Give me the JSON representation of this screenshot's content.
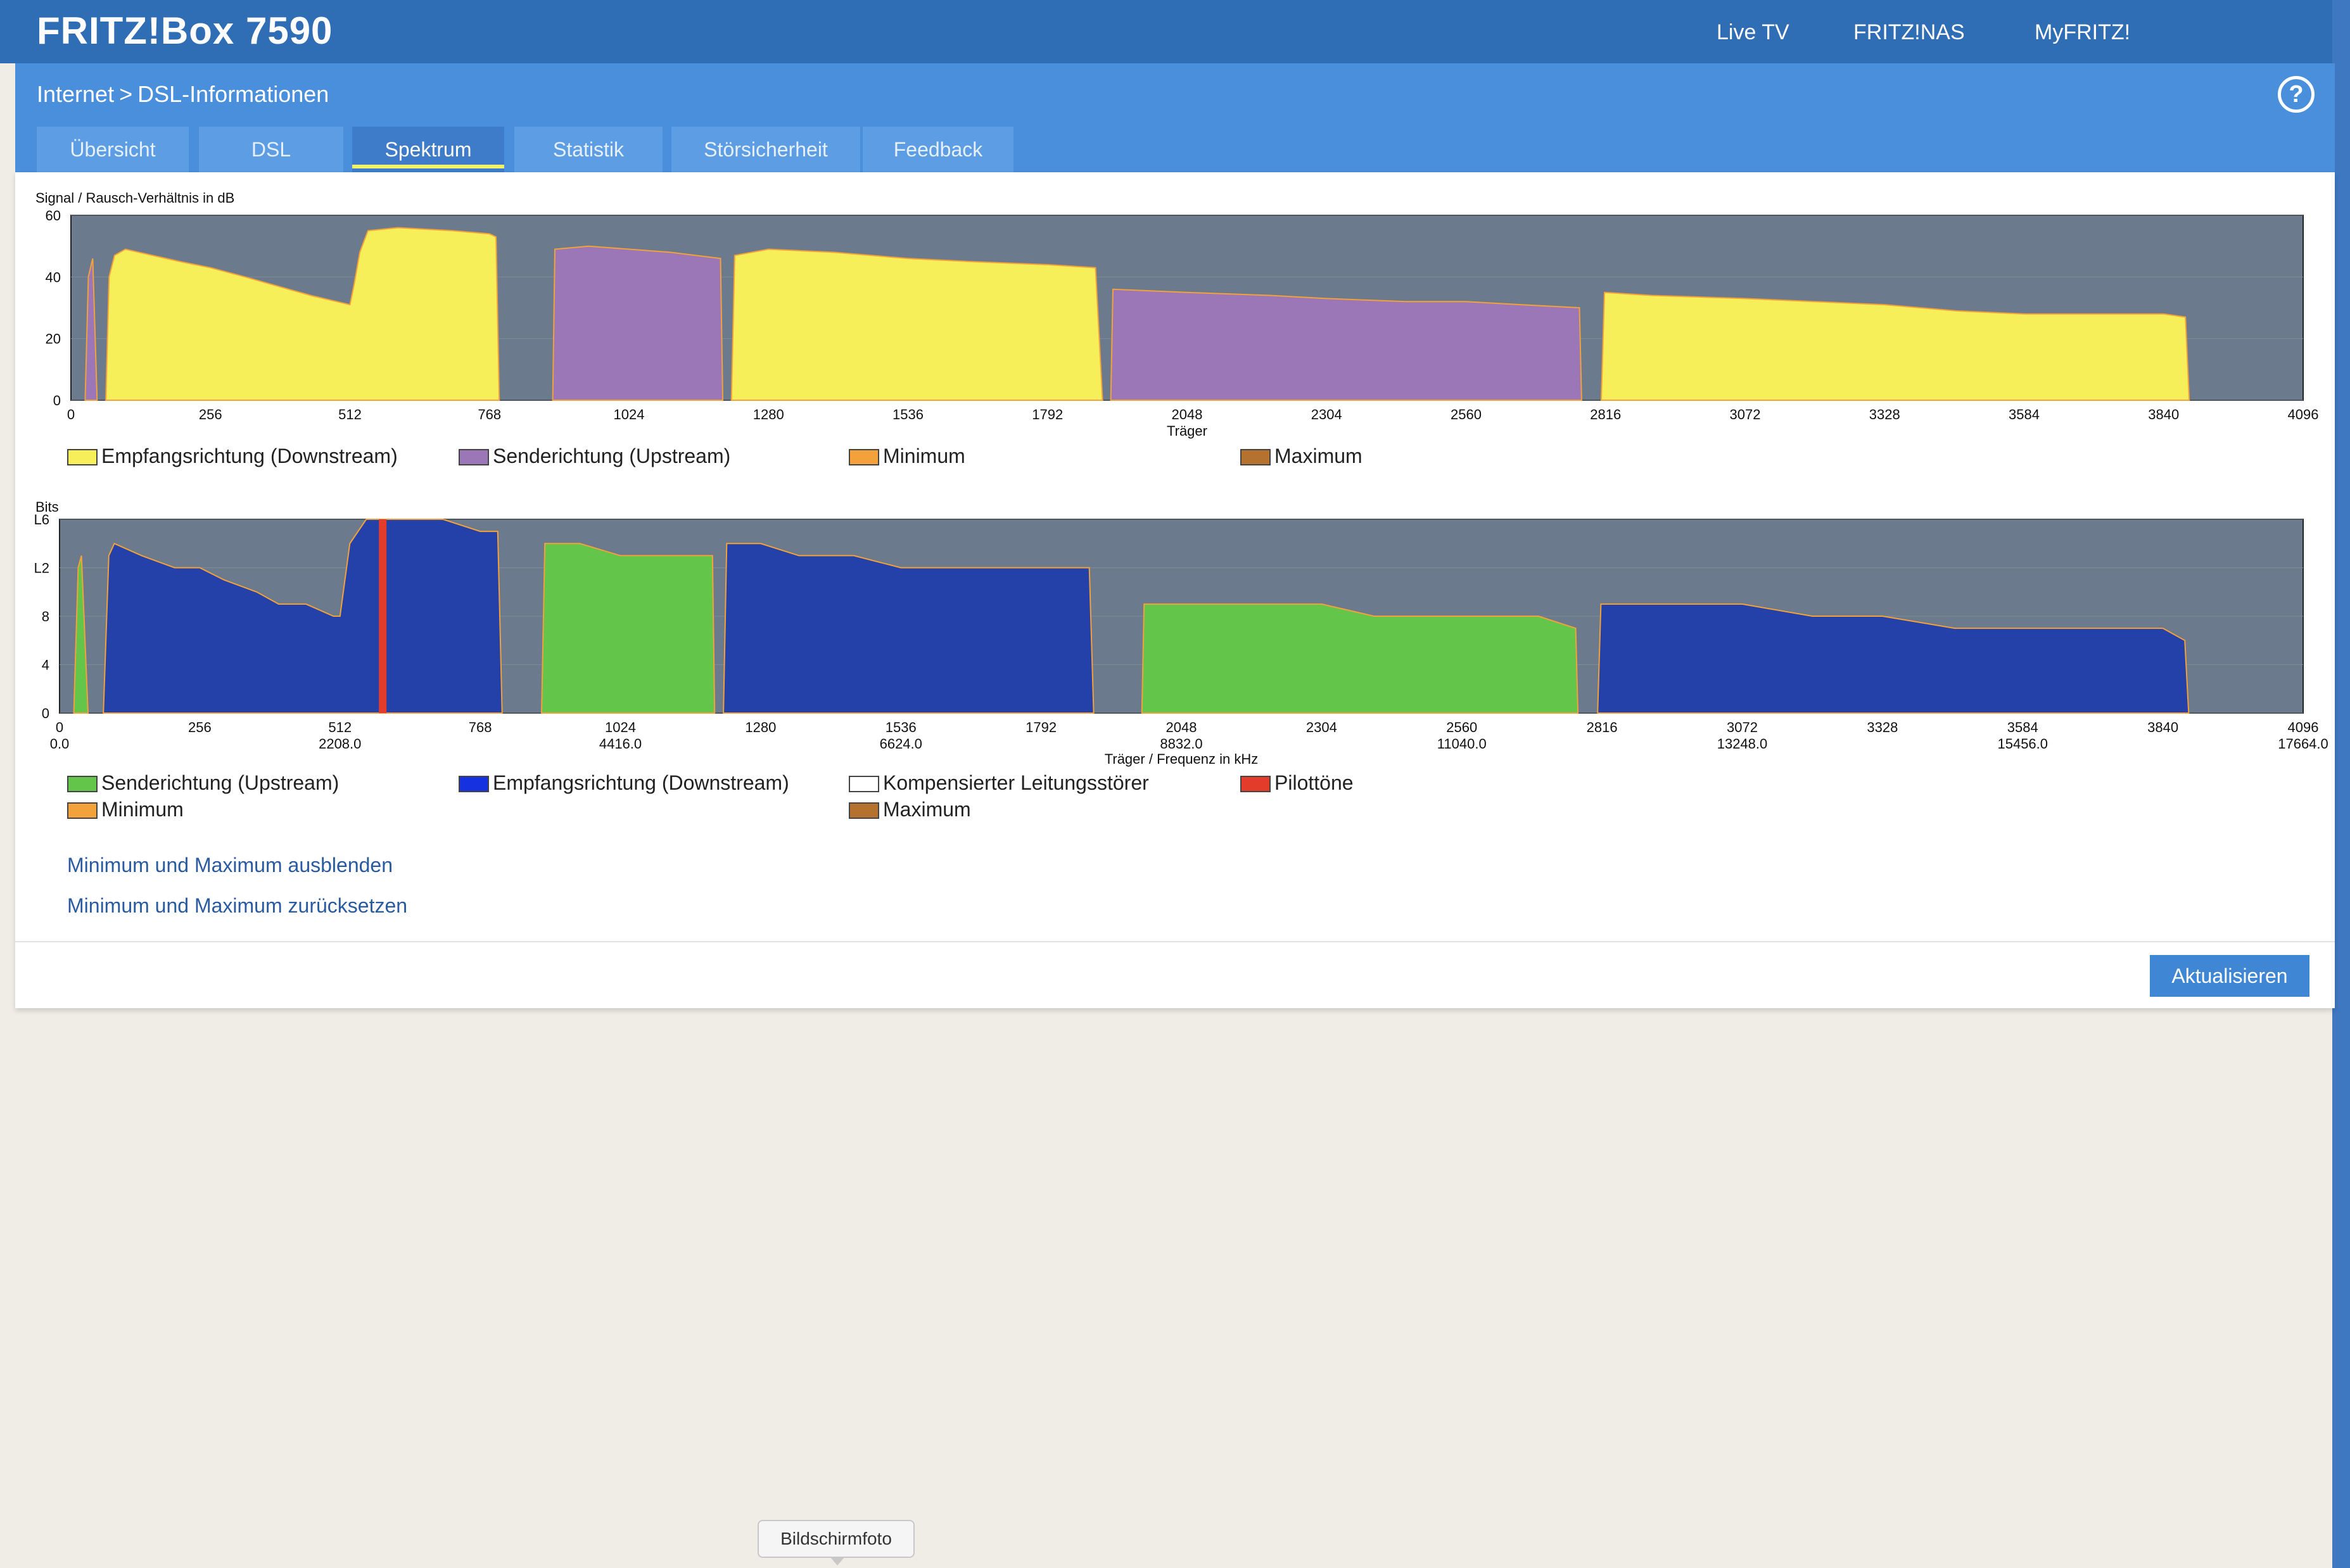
{
  "header": {
    "brand": "FRITZ!Box 7590",
    "nav": [
      "Live TV",
      "FRITZ!NAS",
      "MyFRITZ!"
    ]
  },
  "breadcrumb": {
    "parent": "Internet",
    "separator": ">",
    "current": "DSL-Informationen"
  },
  "help_icon": "question-circle-icon",
  "tabs": [
    {
      "label": "Übersicht",
      "active": false
    },
    {
      "label": "DSL",
      "active": false
    },
    {
      "label": "Spektrum",
      "active": true
    },
    {
      "label": "Statistik",
      "active": false
    },
    {
      "label": "Störsicherheit",
      "active": false
    },
    {
      "label": "Feedback",
      "active": false
    }
  ],
  "colors": {
    "plot_bg": "#6b7a8c",
    "downstream_snr": "#f7ef5a",
    "upstream_snr": "#9b77b8",
    "minimum": "#f3a13a",
    "maximum": "#b5722f",
    "bits_upstream": "#63c64a",
    "bits_downstream": "#2341a8",
    "pilot": "#e33c2a"
  },
  "chart_data": [
    {
      "type": "area",
      "title": "Signal / Rausch-Verhältnis in dB",
      "xlabel": "Träger",
      "ylabel": "",
      "xlim": [
        0,
        4096
      ],
      "ylim": [
        0,
        60
      ],
      "yticks": [
        0,
        20,
        40,
        60
      ],
      "xticks": [
        0,
        256,
        512,
        768,
        1024,
        1280,
        1536,
        1792,
        2048,
        2304,
        2560,
        2816,
        3072,
        3328,
        3584,
        3840,
        4096
      ],
      "series": [
        {
          "name": "Empfangsrichtung (Downstream)",
          "color": "downstream_snr",
          "segments": [
            [
              [
                64,
                0
              ],
              [
                70,
                40
              ],
              [
                80,
                47
              ],
              [
                100,
                49
              ],
              [
                150,
                47
              ],
              [
                200,
                45
              ],
              [
                256,
                43
              ],
              [
                320,
                40
              ],
              [
                380,
                37
              ],
              [
                440,
                34
              ],
              [
                512,
                31
              ],
              [
                520,
                38
              ],
              [
                530,
                48
              ],
              [
                545,
                55
              ],
              [
                600,
                56
              ],
              [
                700,
                55
              ],
              [
                768,
                54
              ],
              [
                780,
                53
              ],
              [
                786,
                0
              ]
            ],
            [
              [
                1212,
                0
              ],
              [
                1218,
                47
              ],
              [
                1280,
                49
              ],
              [
                1400,
                48
              ],
              [
                1536,
                46
              ],
              [
                1650,
                45
              ],
              [
                1792,
                44
              ],
              [
                1880,
                43
              ],
              [
                1893,
                0
              ]
            ],
            [
              [
                2808,
                0
              ],
              [
                2814,
                35
              ],
              [
                2900,
                34
              ],
              [
                3072,
                33
              ],
              [
                3200,
                32
              ],
              [
                3328,
                31
              ],
              [
                3460,
                29
              ],
              [
                3584,
                28
              ],
              [
                3700,
                28
              ],
              [
                3840,
                28
              ],
              [
                3880,
                27
              ],
              [
                3887,
                0
              ]
            ]
          ]
        },
        {
          "name": "Senderichtung (Upstream)",
          "color": "upstream_snr",
          "segments": [
            [
              [
                26,
                0
              ],
              [
                32,
                40
              ],
              [
                40,
                46
              ],
              [
                48,
                0
              ]
            ],
            [
              [
                884,
                0
              ],
              [
                888,
                49
              ],
              [
                950,
                50
              ],
              [
                1024,
                49
              ],
              [
                1100,
                48
              ],
              [
                1192,
                46
              ],
              [
                1196,
                0
              ]
            ],
            [
              [
                1908,
                0
              ],
              [
                1912,
                36
              ],
              [
                2048,
                35
              ],
              [
                2200,
                34
              ],
              [
                2304,
                33
              ],
              [
                2450,
                32
              ],
              [
                2560,
                32
              ],
              [
                2660,
                31
              ],
              [
                2768,
                30
              ],
              [
                2772,
                0
              ]
            ]
          ]
        }
      ],
      "legend": [
        {
          "label": "Empfangsrichtung (Downstream)",
          "color": "downstream_snr"
        },
        {
          "label": "Senderichtung (Upstream)",
          "color": "upstream_snr"
        },
        {
          "label": "Minimum",
          "color": "minimum"
        },
        {
          "label": "Maximum",
          "color": "maximum"
        }
      ],
      "legend_position": "bottom"
    },
    {
      "type": "area",
      "title": "Bits",
      "xlabel": "Träger / Frequenz in kHz",
      "ylabel": "",
      "xlim": [
        0,
        4096
      ],
      "ylim": [
        0,
        16
      ],
      "yticks": [
        0,
        4,
        8,
        12,
        16
      ],
      "ytick_labels": [
        "0",
        "4",
        "8",
        "L2",
        "L6"
      ],
      "xticks": [
        0,
        256,
        512,
        768,
        1024,
        1280,
        1536,
        1792,
        2048,
        2304,
        2560,
        2816,
        3072,
        3328,
        3584,
        3840,
        4096
      ],
      "xticks_secondary": [
        "0.0",
        "2208.0",
        "4416.0",
        "6624.0",
        "8832.0",
        "11040.0",
        "13248.0",
        "15456.0",
        "17664.0"
      ],
      "series": [
        {
          "name": "Senderichtung (Upstream)",
          "color": "bits_upstream",
          "segments": [
            [
              [
                26,
                0
              ],
              [
                34,
                12
              ],
              [
                40,
                13
              ],
              [
                52,
                0
              ]
            ],
            [
              [
                880,
                0
              ],
              [
                886,
                14
              ],
              [
                950,
                14
              ],
              [
                1024,
                13
              ],
              [
                1100,
                13
              ],
              [
                1192,
                13
              ],
              [
                1196,
                0
              ]
            ],
            [
              [
                1976,
                0
              ],
              [
                1980,
                9
              ],
              [
                2048,
                9
              ],
              [
                2200,
                9
              ],
              [
                2304,
                9
              ],
              [
                2400,
                8
              ],
              [
                2560,
                8
              ],
              [
                2700,
                8
              ],
              [
                2768,
                7
              ],
              [
                2772,
                0
              ]
            ]
          ]
        },
        {
          "name": "Empfangsrichtung (Downstream)",
          "color": "bits_downstream",
          "segments": [
            [
              [
                80,
                0
              ],
              [
                90,
                13
              ],
              [
                100,
                14
              ],
              [
                150,
                13
              ],
              [
                210,
                12
              ],
              [
                256,
                12
              ],
              [
                300,
                11
              ],
              [
                360,
                10
              ],
              [
                400,
                9
              ],
              [
                450,
                9
              ],
              [
                500,
                8
              ],
              [
                512,
                8
              ],
              [
                530,
                14
              ],
              [
                560,
                16
              ],
              [
                700,
                16
              ],
              [
                768,
                15
              ],
              [
                800,
                15
              ],
              [
                808,
                0
              ]
            ],
            [
              [
                1212,
                0
              ],
              [
                1218,
                14
              ],
              [
                1280,
                14
              ],
              [
                1350,
                13
              ],
              [
                1450,
                13
              ],
              [
                1536,
                12
              ],
              [
                1650,
                12
              ],
              [
                1792,
                12
              ],
              [
                1880,
                12
              ],
              [
                1888,
                0
              ]
            ],
            [
              [
                2808,
                0
              ],
              [
                2814,
                9
              ],
              [
                3000,
                9
              ],
              [
                3072,
                9
              ],
              [
                3200,
                8
              ],
              [
                3328,
                8
              ],
              [
                3460,
                7
              ],
              [
                3584,
                7
              ],
              [
                3700,
                7
              ],
              [
                3840,
                7
              ],
              [
                3880,
                6
              ],
              [
                3887,
                0
              ]
            ]
          ]
        },
        {
          "name": "Pilottöne",
          "color": "pilot",
          "carriers": [
            590
          ]
        }
      ],
      "legend": [
        {
          "label": "Senderichtung (Upstream)",
          "color": "bits_upstream"
        },
        {
          "label": "Empfangsrichtung (Downstream)",
          "color": "bits_downstream"
        },
        {
          "label": "Kompensierter Leitungsstörer",
          "color": "#ffffff"
        },
        {
          "label": "Pilottöne",
          "color": "pilot"
        },
        {
          "label": "Minimum",
          "color": "minimum"
        },
        {
          "label": "Maximum",
          "color": "maximum"
        }
      ],
      "legend_position": "bottom"
    }
  ],
  "actions": {
    "hide_minmax": "Minimum und Maximum ausblenden",
    "reset_minmax": "Minimum und Maximum zurücksetzen",
    "refresh": "Aktualisieren"
  },
  "tooltip": "Bildschirmfoto"
}
